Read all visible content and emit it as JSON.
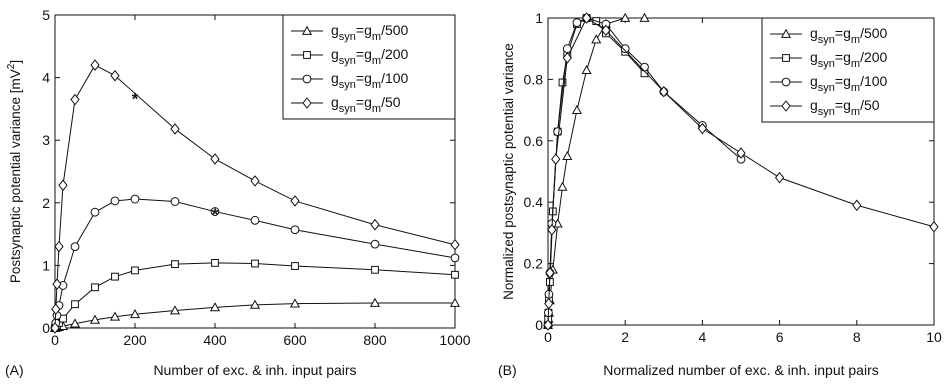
{
  "chart_data": [
    {
      "type": "line",
      "panel_label": "(A)",
      "xlabel": "Number of exc. & inh. input pairs",
      "ylabel": "Postsynaptic potential variance [mV",
      "ylabel_sup": "2",
      "ylabel_close": "]",
      "xlim": [
        0,
        1000
      ],
      "ylim": [
        0,
        5
      ],
      "xticks": [
        0,
        200,
        400,
        600,
        800,
        1000
      ],
      "yticks": [
        0,
        1,
        2,
        3,
        4,
        5
      ],
      "legend_position": "top-right",
      "series": [
        {
          "name": "g_syn=g_m/500",
          "label_base": "g",
          "label_sub1": "syn",
          "label_eq": "=g",
          "label_sub2": "m",
          "label_tail": "/500",
          "marker": "triangle",
          "x": [
            0,
            2,
            5,
            10,
            20,
            50,
            100,
            150,
            200,
            300,
            400,
            500,
            600,
            800,
            1000
          ],
          "y": [
            0,
            0.003,
            0.008,
            0.015,
            0.03,
            0.07,
            0.13,
            0.18,
            0.22,
            0.28,
            0.33,
            0.37,
            0.39,
            0.4,
            0.4
          ]
        },
        {
          "name": "g_syn=g_m/200",
          "label_base": "g",
          "label_sub1": "syn",
          "label_eq": "=g",
          "label_sub2": "m",
          "label_tail": "/200",
          "marker": "square",
          "x": [
            0,
            2,
            5,
            10,
            20,
            50,
            100,
            150,
            200,
            300,
            400,
            500,
            600,
            800,
            1000
          ],
          "y": [
            0,
            0.02,
            0.04,
            0.08,
            0.15,
            0.38,
            0.65,
            0.82,
            0.92,
            1.02,
            1.04,
            1.03,
            0.99,
            0.93,
            0.85
          ]
        },
        {
          "name": "g_syn=g_m/100",
          "label_base": "g",
          "label_sub1": "syn",
          "label_eq": "=g",
          "label_sub2": "m",
          "label_tail": "/100",
          "marker": "circle",
          "x": [
            0,
            2,
            5,
            10,
            20,
            50,
            100,
            150,
            200,
            300,
            400,
            500,
            600,
            800,
            1000
          ],
          "y": [
            0,
            0.08,
            0.2,
            0.36,
            0.68,
            1.3,
            1.85,
            2.03,
            2.06,
            2.02,
            1.86,
            1.72,
            1.57,
            1.34,
            1.12
          ]
        },
        {
          "name": "g_syn=g_m/50",
          "label_base": "g",
          "label_sub1": "syn",
          "label_eq": "=g",
          "label_sub2": "m",
          "label_tail": "/50",
          "marker": "diamond",
          "x": [
            0,
            2,
            5,
            10,
            20,
            50,
            100,
            150,
            300,
            400,
            500,
            600,
            800,
            1000
          ],
          "y": [
            0,
            0.3,
            0.7,
            1.3,
            2.28,
            3.65,
            4.2,
            4.03,
            3.18,
            2.7,
            2.35,
            2.03,
            1.65,
            1.33
          ]
        }
      ],
      "annotations": [
        {
          "text": "*",
          "x": 200,
          "y": 3.7
        },
        {
          "text": "*",
          "x": 400,
          "y": 1.85
        }
      ]
    },
    {
      "type": "line",
      "panel_label": "(B)",
      "xlabel": "Normalized number of exc. & inh. input pairs",
      "ylabel": "Normalized postsynaptic potential variance",
      "xlim": [
        0,
        10
      ],
      "ylim": [
        0,
        1
      ],
      "xticks": [
        0,
        2,
        4,
        6,
        8,
        10
      ],
      "yticks": [
        0,
        0.2,
        0.4,
        0.6,
        0.8,
        1
      ],
      "legend_position": "top-right",
      "series": [
        {
          "name": "g_syn=g_m/500",
          "label_base": "g",
          "label_sub1": "syn",
          "label_eq": "=g",
          "label_sub2": "m",
          "label_tail": "/500",
          "marker": "triangle",
          "x": [
            0,
            0.005,
            0.0125,
            0.025,
            0.05,
            0.125,
            0.25,
            0.375,
            0.5,
            0.75,
            1,
            1.25,
            1.5,
            2,
            2.5
          ],
          "y": [
            0,
            0.008,
            0.02,
            0.04,
            0.08,
            0.18,
            0.33,
            0.45,
            0.55,
            0.7,
            0.83,
            0.93,
            0.98,
            1.0,
            1.0
          ]
        },
        {
          "name": "g_syn=g_m/200",
          "label_base": "g",
          "label_sub1": "syn",
          "label_eq": "=g",
          "label_sub2": "m",
          "label_tail": "/200",
          "marker": "square",
          "x": [
            0,
            0.005,
            0.0125,
            0.025,
            0.05,
            0.125,
            0.25,
            0.375,
            0.5,
            0.75,
            1,
            1.25,
            1.5,
            2,
            2.5
          ],
          "y": [
            0,
            0.02,
            0.04,
            0.08,
            0.14,
            0.37,
            0.63,
            0.79,
            0.88,
            0.98,
            1.0,
            0.99,
            0.95,
            0.89,
            0.82
          ]
        },
        {
          "name": "g_syn=g_m/100",
          "label_base": "g",
          "label_sub1": "syn",
          "label_eq": "=g",
          "label_sub2": "m",
          "label_tail": "/100",
          "marker": "circle",
          "x": [
            0,
            0.01,
            0.025,
            0.05,
            0.1,
            0.25,
            0.5,
            0.75,
            1,
            1.5,
            2,
            2.5,
            3,
            4,
            5
          ],
          "y": [
            0,
            0.04,
            0.1,
            0.17,
            0.33,
            0.63,
            0.9,
            0.985,
            1.0,
            0.98,
            0.9,
            0.84,
            0.76,
            0.65,
            0.54
          ]
        },
        {
          "name": "g_syn=g_m/50",
          "label_base": "g",
          "label_sub1": "syn",
          "label_eq": "=g",
          "label_sub2": "m",
          "label_tail": "/50",
          "marker": "diamond",
          "x": [
            0,
            0.02,
            0.05,
            0.1,
            0.2,
            0.5,
            1,
            1.5,
            3,
            4,
            5,
            6,
            8,
            10
          ],
          "y": [
            0,
            0.07,
            0.17,
            0.31,
            0.54,
            0.87,
            1.0,
            0.96,
            0.76,
            0.64,
            0.56,
            0.48,
            0.39,
            0.32
          ]
        }
      ]
    }
  ]
}
